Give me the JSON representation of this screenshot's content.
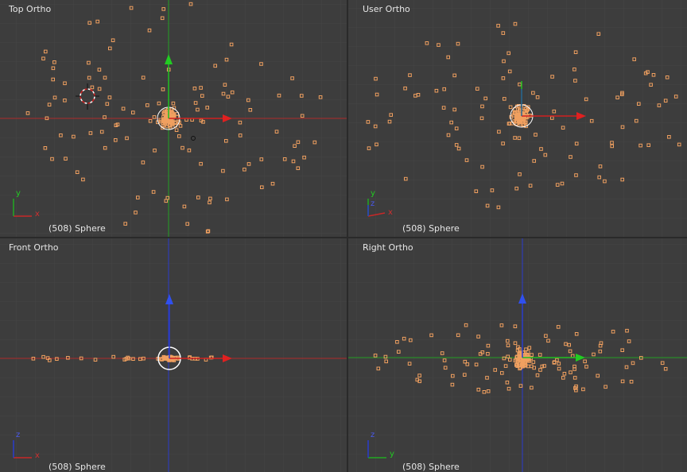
{
  "viewports": {
    "top": {
      "title": "Top Ortho",
      "status": "(508) Sphere",
      "gizmo": {
        "vertical": "y",
        "horizontal": "x"
      }
    },
    "user": {
      "title": "User Ortho",
      "status": "(508) Sphere",
      "gizmo": {
        "vertical": "y",
        "horizontal": "x",
        "depth": "z"
      }
    },
    "front": {
      "title": "Front Ortho",
      "status": "(508) Sphere",
      "gizmo": {
        "vertical": "z",
        "horizontal": "x"
      }
    },
    "right": {
      "title": "Right Ortho",
      "status": "(508) Sphere",
      "gizmo": {
        "vertical": "z",
        "horizontal": "y"
      }
    }
  },
  "colors": {
    "background": "#3d3d3d",
    "grid": "#454545",
    "x_axis": "#c82828",
    "y_axis": "#22aa22",
    "z_axis": "#2a3ccc",
    "vertex": "#f0a060",
    "text": "#e6e6e6"
  }
}
